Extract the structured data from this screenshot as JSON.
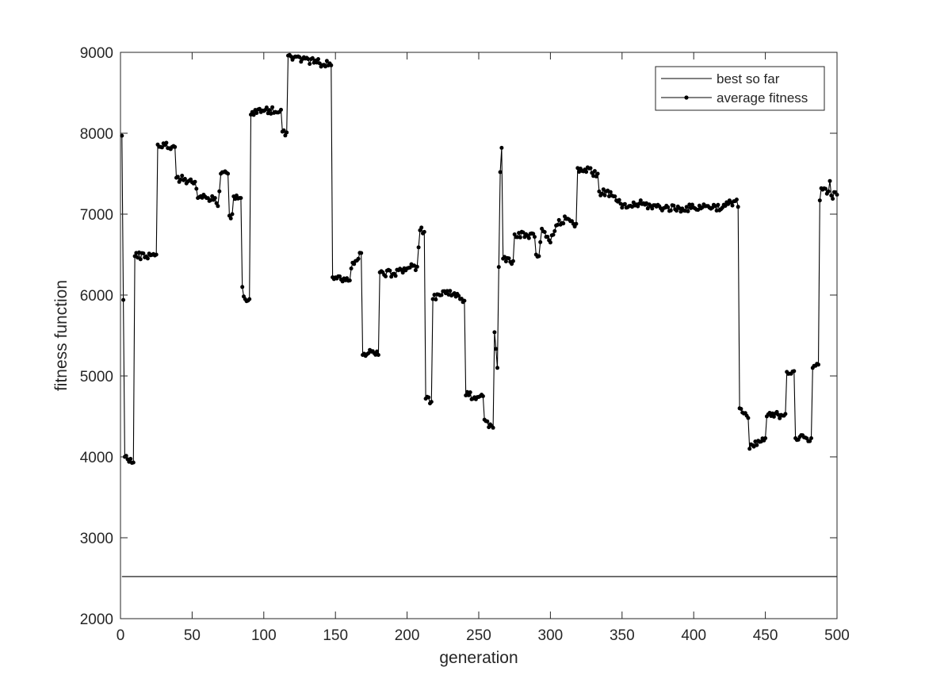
{
  "chart_data": {
    "type": "line",
    "title": "",
    "xlabel": "generation",
    "ylabel": "fitness function",
    "xlim": [
      0,
      500
    ],
    "ylim": [
      2000,
      9000
    ],
    "xticks": [
      "0",
      "50",
      "100",
      "150",
      "200",
      "250",
      "300",
      "350",
      "400",
      "450",
      "500"
    ],
    "yticks": [
      "2000",
      "3000",
      "4000",
      "5000",
      "6000",
      "7000",
      "8000",
      "9000"
    ],
    "grid": false,
    "legend_position": "top-right",
    "colors": {
      "best": "#000000",
      "average": "#000000"
    },
    "series": [
      {
        "name": "best so far",
        "marker": "none",
        "x": [
          1,
          500
        ],
        "values": [
          2520,
          2520
        ]
      },
      {
        "name": "average fitness",
        "marker": "dot",
        "segments": [
          [
            1,
            7970
          ],
          [
            3,
            4000
          ],
          [
            9,
            3930
          ],
          [
            10,
            6480
          ],
          [
            25,
            6500
          ],
          [
            26,
            7860
          ],
          [
            38,
            7830
          ],
          [
            39,
            7450
          ],
          [
            52,
            7400
          ],
          [
            54,
            7200
          ],
          [
            66,
            7200
          ],
          [
            68,
            7100
          ],
          [
            70,
            7500
          ],
          [
            75,
            7500
          ],
          [
            76,
            6980
          ],
          [
            78,
            7000
          ],
          [
            79,
            7220
          ],
          [
            83,
            7200
          ],
          [
            84,
            7200
          ],
          [
            85,
            6100
          ],
          [
            87,
            5950
          ],
          [
            90,
            5950
          ],
          [
            91,
            8230
          ],
          [
            99,
            8280
          ],
          [
            112,
            8290
          ],
          [
            113,
            8020
          ],
          [
            116,
            8010
          ],
          [
            117,
            8960
          ],
          [
            147,
            8840
          ],
          [
            148,
            6220
          ],
          [
            160,
            6180
          ],
          [
            162,
            6400
          ],
          [
            168,
            6520
          ],
          [
            169,
            5260
          ],
          [
            175,
            5300
          ],
          [
            180,
            5260
          ],
          [
            181,
            6280
          ],
          [
            190,
            6260
          ],
          [
            198,
            6330
          ],
          [
            207,
            6350
          ],
          [
            209,
            6800
          ],
          [
            212,
            6780
          ],
          [
            213,
            4720
          ],
          [
            217,
            4680
          ],
          [
            218,
            5950
          ],
          [
            228,
            6050
          ],
          [
            237,
            5950
          ],
          [
            240,
            5930
          ],
          [
            241,
            4760
          ],
          [
            251,
            4750
          ],
          [
            253,
            4750
          ],
          [
            254,
            4460
          ],
          [
            260,
            4360
          ],
          [
            261,
            5540
          ],
          [
            263,
            5100
          ],
          [
            265,
            7520
          ],
          [
            266,
            7820
          ],
          [
            267,
            6450
          ],
          [
            274,
            6420
          ],
          [
            275,
            6750
          ],
          [
            289,
            6720
          ],
          [
            290,
            6500
          ],
          [
            292,
            6480
          ],
          [
            294,
            6820
          ],
          [
            300,
            6650
          ],
          [
            304,
            6860
          ],
          [
            311,
            6940
          ],
          [
            318,
            6880
          ],
          [
            319,
            7570
          ],
          [
            333,
            7500
          ],
          [
            334,
            7280
          ],
          [
            345,
            7220
          ],
          [
            350,
            7080
          ],
          [
            362,
            7130
          ],
          [
            370,
            7100
          ],
          [
            380,
            7080
          ],
          [
            392,
            7070
          ],
          [
            400,
            7080
          ],
          [
            410,
            7100
          ],
          [
            420,
            7080
          ],
          [
            430,
            7180
          ],
          [
            431,
            7090
          ],
          [
            432,
            4600
          ],
          [
            438,
            4480
          ],
          [
            439,
            4100
          ],
          [
            450,
            4230
          ],
          [
            451,
            4500
          ],
          [
            464,
            4530
          ],
          [
            465,
            5050
          ],
          [
            470,
            5060
          ],
          [
            471,
            4230
          ],
          [
            482,
            4230
          ],
          [
            483,
            5100
          ],
          [
            487,
            5140
          ],
          [
            488,
            7170
          ],
          [
            489,
            7320
          ],
          [
            494,
            7280
          ],
          [
            495,
            7410
          ],
          [
            496,
            7230
          ],
          [
            500,
            7240
          ]
        ]
      }
    ]
  }
}
